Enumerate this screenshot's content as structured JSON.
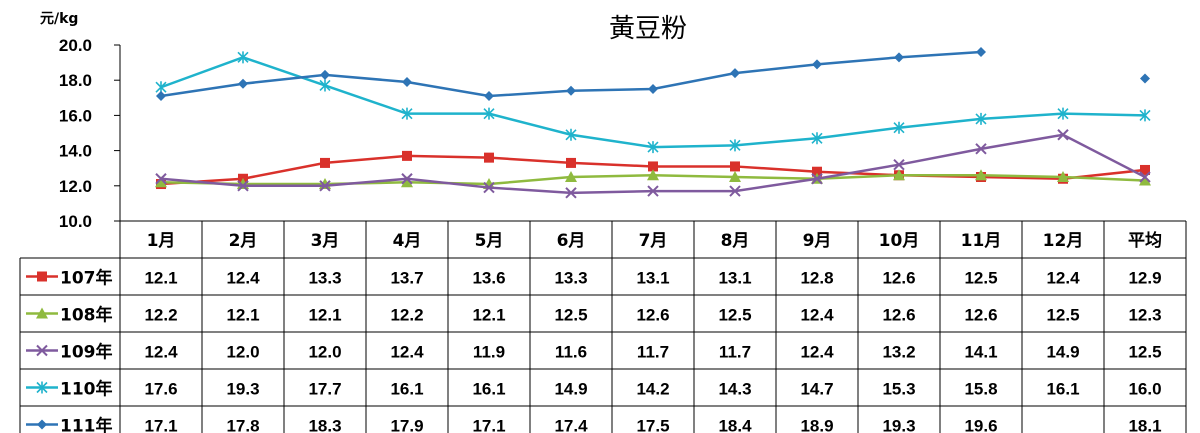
{
  "chart_data": {
    "type": "line",
    "title": "黃豆粉",
    "unit_label": "元/kg",
    "categories": [
      "1月",
      "2月",
      "3月",
      "4月",
      "5月",
      "6月",
      "7月",
      "8月",
      "9月",
      "10月",
      "11月",
      "12月",
      "平均"
    ],
    "ylim": [
      10.0,
      20.0
    ],
    "yticks": [
      "10.0",
      "12.0",
      "14.0",
      "16.0",
      "18.0",
      "20.0"
    ],
    "grid": false,
    "legend": "table-rows-left",
    "series": [
      {
        "name": "107年",
        "color": "#d9312b",
        "marker": "square",
        "values": [
          12.1,
          12.4,
          13.3,
          13.7,
          13.6,
          13.3,
          13.1,
          13.1,
          12.8,
          12.6,
          12.5,
          12.4,
          12.9
        ],
        "labels": [
          "12.1",
          "12.4",
          "13.3",
          "13.7",
          "13.6",
          "13.3",
          "13.1",
          "13.1",
          "12.8",
          "12.6",
          "12.5",
          "12.4",
          "12.9"
        ]
      },
      {
        "name": "108年",
        "color": "#8fba3f",
        "marker": "triangle",
        "values": [
          12.2,
          12.1,
          12.1,
          12.2,
          12.1,
          12.5,
          12.6,
          12.5,
          12.4,
          12.6,
          12.6,
          12.5,
          12.3
        ],
        "labels": [
          "12.2",
          "12.1",
          "12.1",
          "12.2",
          "12.1",
          "12.5",
          "12.6",
          "12.5",
          "12.4",
          "12.6",
          "12.6",
          "12.5",
          "12.3"
        ]
      },
      {
        "name": "109年",
        "color": "#7f5a9e",
        "marker": "x",
        "values": [
          12.4,
          12.0,
          12.0,
          12.4,
          11.9,
          11.6,
          11.7,
          11.7,
          12.4,
          13.2,
          14.1,
          14.9,
          12.5
        ],
        "labels": [
          "12.4",
          "12.0",
          "12.0",
          "12.4",
          "11.9",
          "11.6",
          "11.7",
          "11.7",
          "12.4",
          "13.2",
          "14.1",
          "14.9",
          "12.5"
        ]
      },
      {
        "name": "110年",
        "color": "#1fb3cc",
        "marker": "star",
        "values": [
          17.6,
          19.3,
          17.7,
          16.1,
          16.1,
          14.9,
          14.2,
          14.3,
          14.7,
          15.3,
          15.8,
          16.1,
          16.0
        ],
        "labels": [
          "17.6",
          "19.3",
          "17.7",
          "16.1",
          "16.1",
          "14.9",
          "14.2",
          "14.3",
          "14.7",
          "15.3",
          "15.8",
          "16.1",
          "16.0"
        ]
      },
      {
        "name": "111年",
        "color": "#2e74b5",
        "marker": "diamond",
        "values": [
          17.1,
          17.8,
          18.3,
          17.9,
          17.1,
          17.4,
          17.5,
          18.4,
          18.9,
          19.3,
          19.6,
          null,
          18.1
        ],
        "labels": [
          "17.1",
          "17.8",
          "18.3",
          "17.9",
          "17.1",
          "17.4",
          "17.5",
          "18.4",
          "18.9",
          "19.3",
          "19.6",
          "",
          "18.1"
        ]
      }
    ]
  }
}
